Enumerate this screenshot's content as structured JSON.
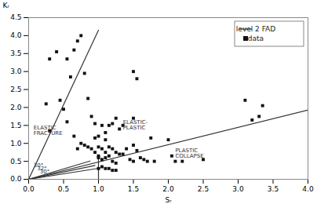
{
  "chart_data": {
    "type": "scatter",
    "xlabel": "Sᵣ",
    "ylabel": "Kᵣ",
    "series": [
      {
        "type": "line",
        "color": "#333333",
        "x": [
          0,
          0.88
        ],
        "values": [
          0,
          0.5081
        ]
      },
      {
        "type": "line",
        "color": "#333333",
        "x": [
          0,
          0.95
        ],
        "values": [
          0,
          0.3838
        ]
      },
      {
        "type": "line",
        "color": "#333333",
        "x": [
          0,
          1.02
        ],
        "values": [
          0,
          0.3118
        ]
      },
      {
        "name": "level 2 FAD",
        "type": "line",
        "color": "#333333",
        "x": [
          0.0,
          4.0
        ],
        "values": [
          0.0,
          1.93
        ]
      },
      {
        "type": "line",
        "color": "#333333",
        "x": [
          0.0,
          1.0
        ],
        "values": [
          0.0,
          4.15
        ]
      },
      {
        "type": "line",
        "color": "#333333",
        "x": [
          1.0,
          1.0
        ],
        "values": [
          0.0,
          0.63
        ]
      },
      {
        "name": "data",
        "type": "scatter",
        "marker": "square",
        "color": "#111111",
        "x": [
          0.3,
          0.4,
          0.45,
          0.5,
          0.55,
          0.6,
          0.65,
          0.7,
          0.75,
          0.8,
          0.85,
          0.9,
          0.95,
          0.95,
          1.0,
          1.0,
          1.0,
          1.0,
          1.05,
          1.05,
          1.05,
          1.1,
          1.1,
          1.1,
          1.1,
          1.15,
          1.15,
          1.15,
          1.2,
          1.2,
          1.2,
          1.25,
          1.25,
          1.25,
          1.3,
          1.3,
          1.35,
          1.35,
          1.4,
          1.45,
          1.5,
          1.5,
          1.5,
          1.5,
          1.55,
          1.55,
          1.6,
          1.65,
          1.7,
          1.75,
          1.8,
          2.0,
          2.05,
          2.1,
          2.2,
          2.5,
          3.1,
          3.2,
          3.3,
          3.35,
          0.25,
          0.3,
          0.55,
          0.65,
          0.7,
          0.75,
          0.8,
          0.85,
          0.9,
          0.95,
          1.0,
          1.05,
          1.1,
          1.15,
          1.2,
          1.25
        ],
        "values": [
          3.35,
          3.55,
          2.2,
          1.95,
          3.35,
          2.85,
          3.6,
          3.85,
          4.0,
          2.95,
          2.25,
          1.75,
          1.15,
          1.55,
          1.2,
          0.9,
          0.65,
          0.6,
          1.5,
          0.85,
          0.55,
          1.3,
          1.1,
          0.75,
          0.6,
          1.5,
          0.9,
          0.65,
          1.55,
          0.85,
          0.5,
          1.7,
          0.75,
          0.45,
          1.4,
          0.7,
          1.5,
          0.7,
          0.85,
          0.55,
          3.0,
          1.7,
          0.95,
          0.5,
          2.8,
          0.8,
          0.6,
          0.55,
          0.5,
          1.15,
          0.5,
          1.1,
          0.65,
          0.5,
          0.5,
          0.55,
          2.2,
          1.65,
          1.75,
          2.05,
          2.1,
          1.35,
          1.6,
          1.2,
          0.85,
          1.0,
          0.95,
          0.9,
          0.85,
          0.75,
          0.3,
          0.35,
          0.3,
          0.3,
          0.25,
          0.25
        ]
      }
    ],
    "annotations": [
      {
        "text": "30°",
        "x": 0.07,
        "y": 0.38
      },
      {
        "text": "32°",
        "x": 0.12,
        "y": 0.3
      },
      {
        "text": "30°",
        "x": 0.16,
        "y": 0.22
      },
      {
        "text": "ELASTIC\nFRACTURE",
        "x": 0.07,
        "y": 1.35
      },
      {
        "text": "ELASTIC-\nPLASTIC",
        "x": 1.35,
        "y": 1.52
      },
      {
        "text": "PLASTIC\nCOLLAPSE",
        "x": 2.1,
        "y": 0.72
      }
    ],
    "xlim": [
      0,
      4
    ],
    "ylim": [
      0,
      4.5
    ],
    "xticks": [
      {
        "value": 0,
        "label": "0.0"
      },
      0.5,
      {
        "value": 1,
        "label": "1.0"
      },
      1.5,
      {
        "value": 2,
        "label": "2.0"
      },
      2.5,
      {
        "value": 3,
        "label": "3.0"
      },
      3.5,
      {
        "value": 4,
        "label": "4.0"
      }
    ],
    "yticks": [
      {
        "value": 0,
        "label": "0.0"
      },
      0.5,
      {
        "value": 1,
        "label": "1.0"
      },
      1.5,
      {
        "value": 2,
        "label": "2.0"
      },
      2.5,
      {
        "value": 3,
        "label": "3.0"
      },
      3.5,
      {
        "value": 4,
        "label": "4.0"
      },
      4.5
    ],
    "legend": "upper right",
    "grid": false
  }
}
